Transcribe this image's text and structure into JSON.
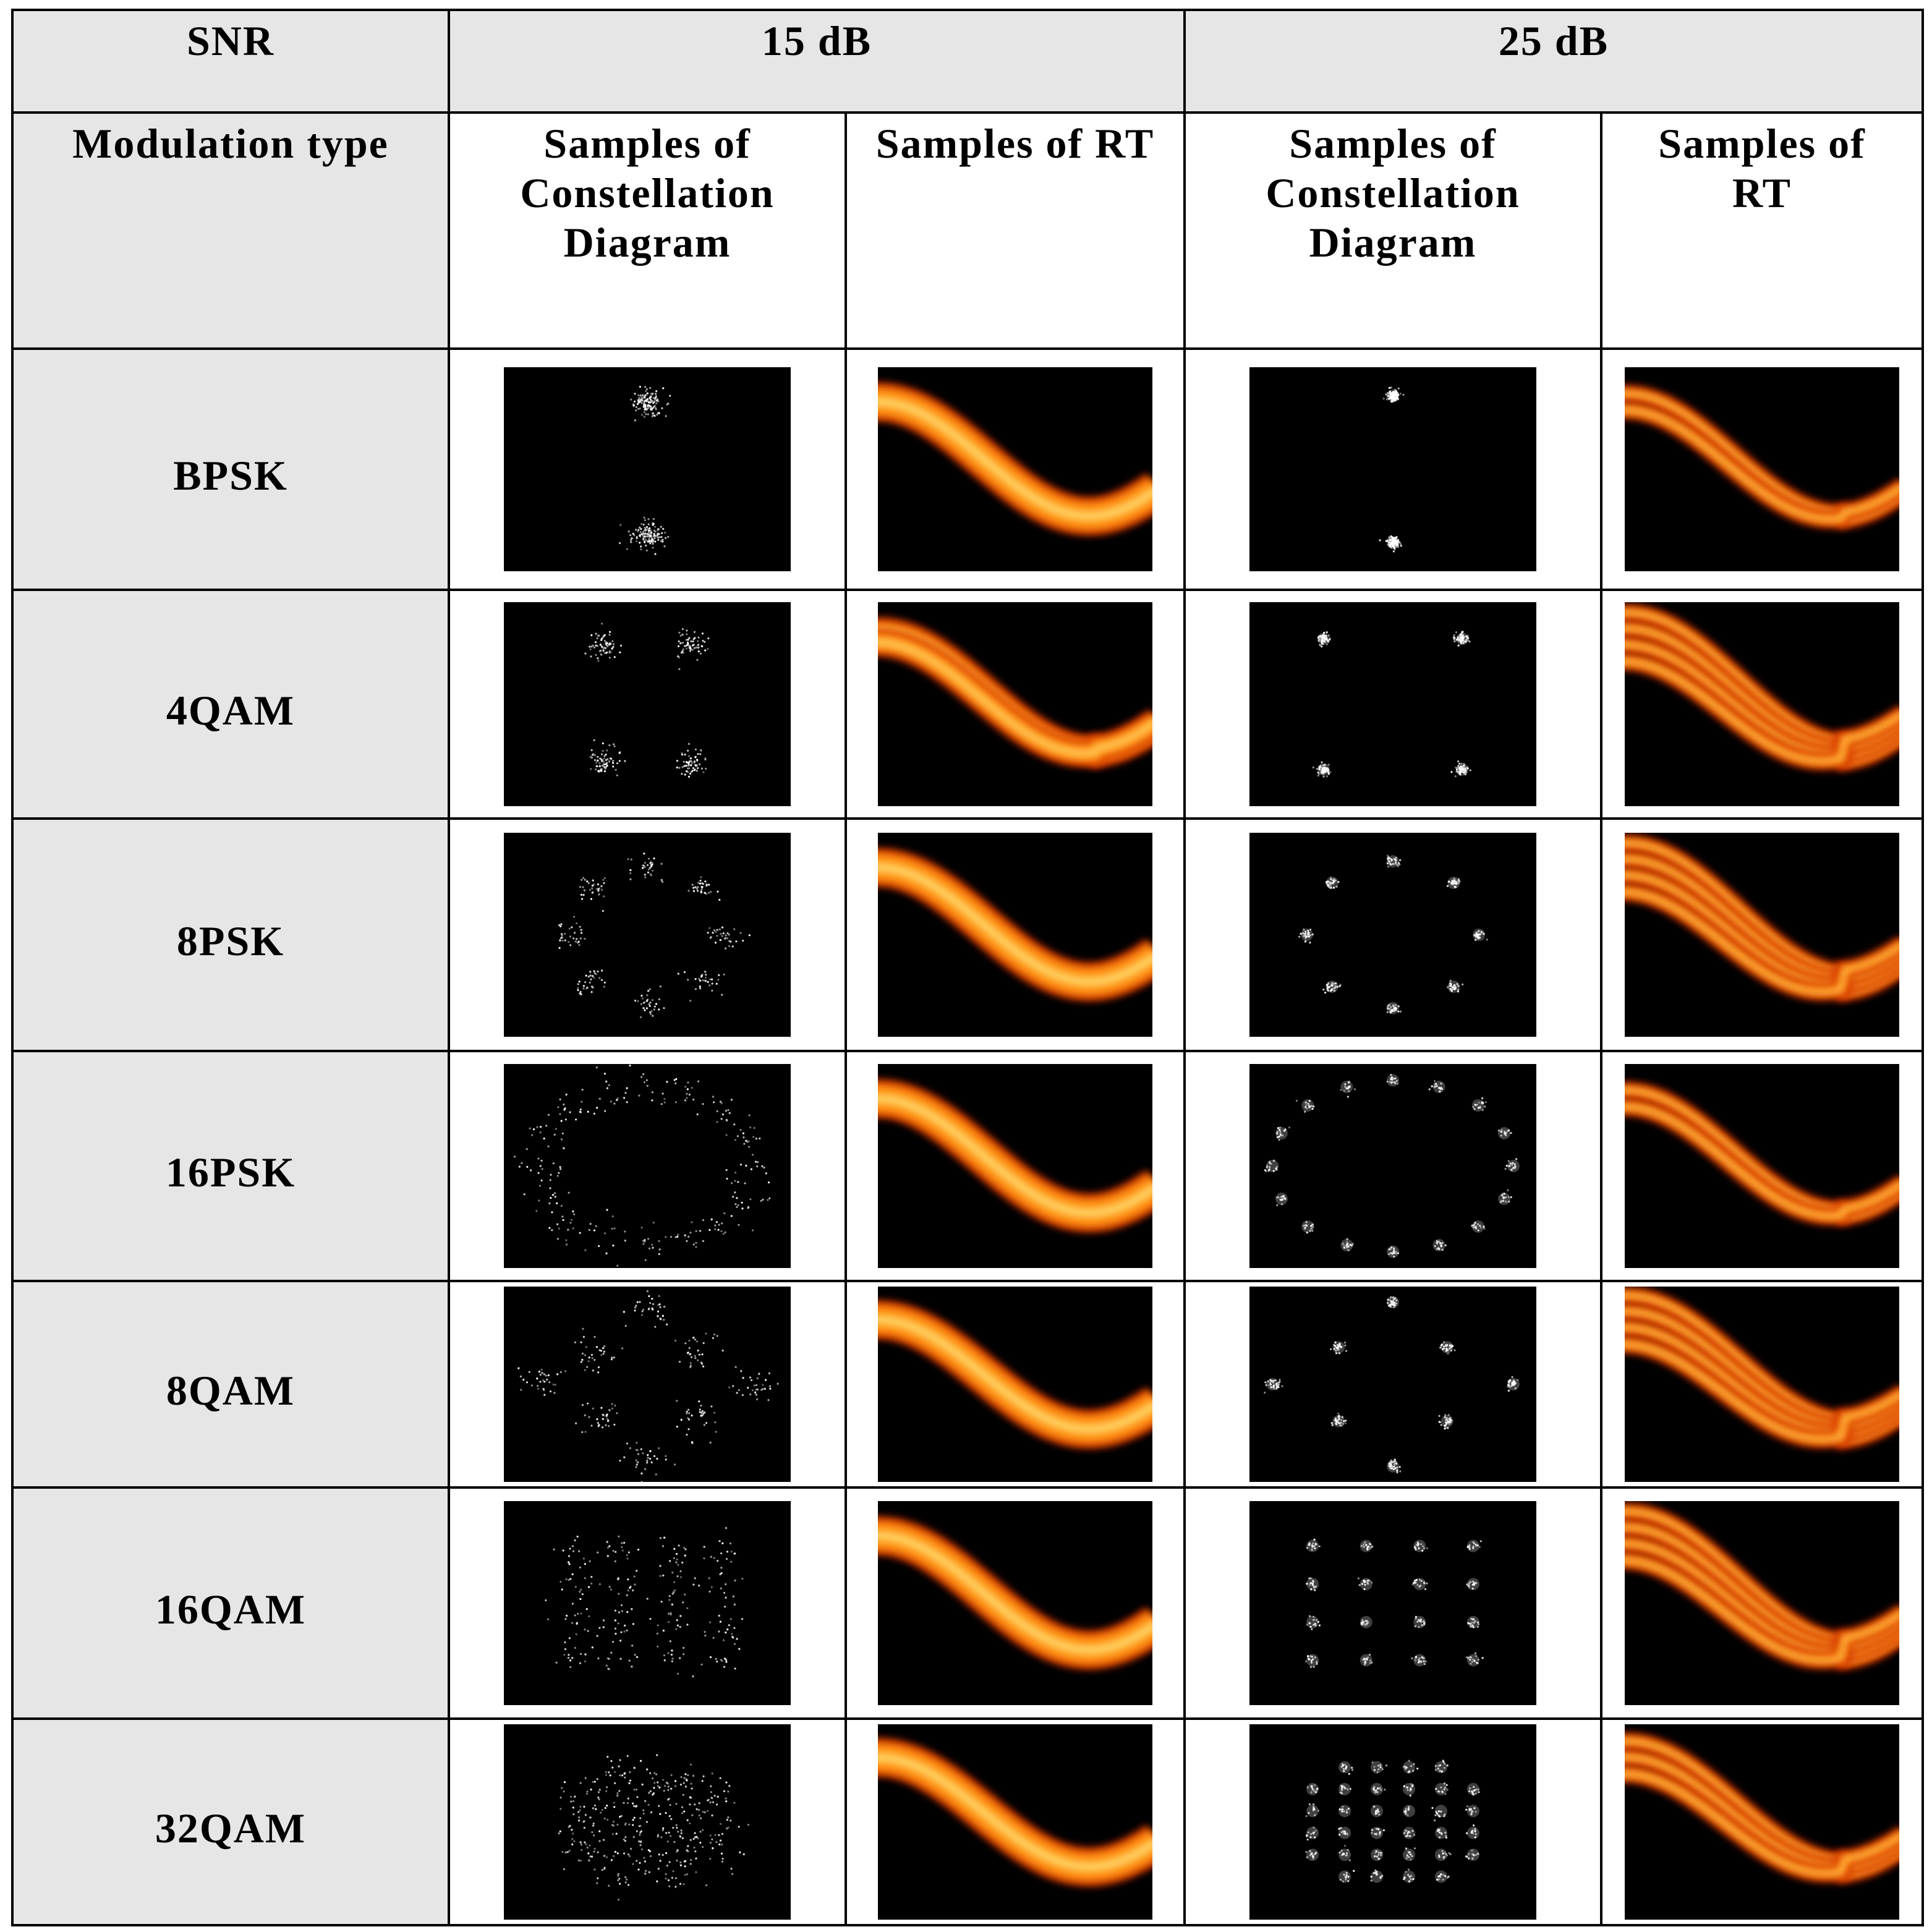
{
  "table": {
    "header": {
      "snr_label": "SNR",
      "groups": [
        "15 dB",
        "25 dB"
      ]
    },
    "subheader": {
      "modulation_label": "Modulation type",
      "columns": [
        "Samples of Constellation Diagram",
        "Samples of RT",
        "Samples of Constellation Diagram",
        "Samples of RT"
      ]
    },
    "rows": [
      "BPSK",
      "4QAM",
      "8PSK",
      "16PSK",
      "8QAM",
      "16QAM",
      "32QAM"
    ]
  }
}
